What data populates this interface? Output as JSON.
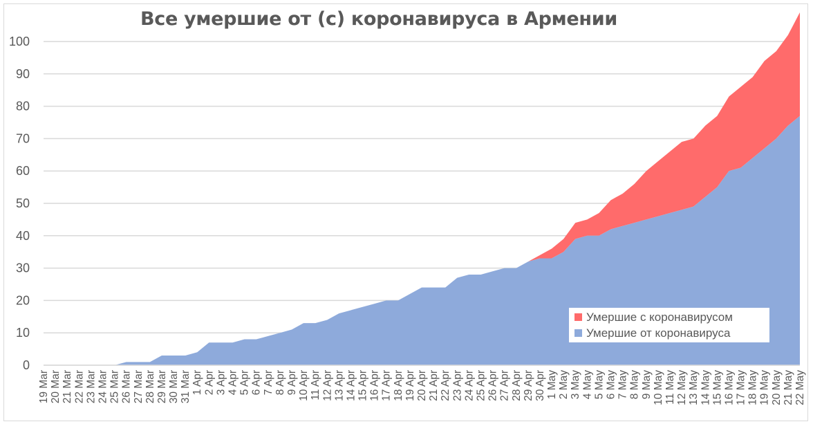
{
  "chart_data": {
    "type": "area",
    "stacked": true,
    "title": "Все умершие от (с) коронавируса в Армении",
    "xlabel": "",
    "ylabel": "",
    "ylim": [
      0,
      110
    ],
    "yticks": [
      0,
      10,
      20,
      30,
      40,
      50,
      60,
      70,
      80,
      90,
      100
    ],
    "grid": true,
    "legend_position": "bottom-right",
    "categories": [
      "19 Mar",
      "20 Mar",
      "21 Mar",
      "22 Mar",
      "23 Mar",
      "24 Mar",
      "25 Mar",
      "26 Mar",
      "27 Mar",
      "28 Mar",
      "29 Mar",
      "30 Mar",
      "31 Mar",
      "1 Apr",
      "2 Apr",
      "3 Apr",
      "4 Apr",
      "5 Apr",
      "6 Apr",
      "7 Apr",
      "8 Apr",
      "9 Apr",
      "10 Apr",
      "11 Apr",
      "12 Apr",
      "13 Apr",
      "14 Apr",
      "15 Apr",
      "16 Apr",
      "17 Apr",
      "18 Apr",
      "19 Apr",
      "20 Apr",
      "21 Apr",
      "22 Apr",
      "23 Apr",
      "24 Apr",
      "25 Apr",
      "26 Apr",
      "27 Apr",
      "28 Apr",
      "29 Apr",
      "30 Apr",
      "1 May",
      "2 May",
      "3 May",
      "4 May",
      "5 May",
      "6 May",
      "7 May",
      "8 May",
      "9 May",
      "10 May",
      "11 May",
      "12 May",
      "13 May",
      "14 May",
      "15 May",
      "16 May",
      "17 May",
      "18 May",
      "19 May",
      "20 May",
      "21 May",
      "22 May"
    ],
    "series": [
      {
        "name": "Умершие от коронавируса",
        "color": "#8eaadb",
        "values": [
          0,
          0,
          0,
          0,
          0,
          0,
          0,
          1,
          1,
          1,
          3,
          3,
          3,
          4,
          7,
          7,
          7,
          8,
          8,
          9,
          10,
          11,
          13,
          13,
          14,
          16,
          17,
          18,
          19,
          20,
          20,
          22,
          24,
          24,
          24,
          27,
          28,
          28,
          29,
          30,
          30,
          32,
          33,
          33,
          35,
          39,
          40,
          40,
          42,
          43,
          44,
          45,
          46,
          47,
          48,
          49,
          52,
          55,
          60,
          61,
          64,
          67,
          70,
          74,
          77
        ]
      },
      {
        "name": "Умершие с коронавирусом",
        "color": "#ff6b6b",
        "values": [
          0,
          0,
          0,
          0,
          0,
          0,
          0,
          0,
          0,
          0,
          0,
          0,
          0,
          0,
          0,
          0,
          0,
          0,
          0,
          0,
          0,
          0,
          0,
          0,
          0,
          0,
          0,
          0,
          0,
          0,
          0,
          0,
          0,
          0,
          0,
          0,
          0,
          0,
          0,
          0,
          0,
          0,
          1,
          3,
          4,
          5,
          5,
          7,
          9,
          10,
          12,
          15,
          17,
          19,
          21,
          21,
          22,
          22,
          23,
          25,
          25,
          27,
          27,
          28,
          32
        ]
      }
    ]
  }
}
